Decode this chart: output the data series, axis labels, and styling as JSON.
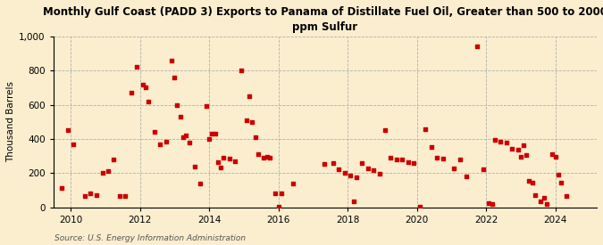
{
  "title": "Monthly Gulf Coast (PADD 3) Exports to Panama of Distillate Fuel Oil, Greater than 500 to 2000\nppm Sulfur",
  "ylabel": "Thousand Barrels",
  "source": "Source: U.S. Energy Information Administration",
  "background_color": "#faeecf",
  "marker_color": "#cc0000",
  "ylim": [
    0,
    1000
  ],
  "yticks": [
    0,
    200,
    400,
    600,
    800,
    1000
  ],
  "xlim_start": 2009.5,
  "xlim_end": 2025.2,
  "xticks": [
    2010,
    2012,
    2014,
    2016,
    2018,
    2020,
    2022,
    2024
  ],
  "data_points": [
    [
      2009.75,
      110
    ],
    [
      2009.92,
      450
    ],
    [
      2010.08,
      370
    ],
    [
      2010.42,
      65
    ],
    [
      2010.58,
      80
    ],
    [
      2010.75,
      70
    ],
    [
      2010.92,
      200
    ],
    [
      2011.08,
      210
    ],
    [
      2011.25,
      280
    ],
    [
      2011.42,
      65
    ],
    [
      2011.58,
      65
    ],
    [
      2011.75,
      670
    ],
    [
      2011.92,
      820
    ],
    [
      2012.08,
      720
    ],
    [
      2012.17,
      700
    ],
    [
      2012.25,
      620
    ],
    [
      2012.42,
      440
    ],
    [
      2012.58,
      370
    ],
    [
      2012.75,
      385
    ],
    [
      2012.92,
      860
    ],
    [
      2013.0,
      760
    ],
    [
      2013.08,
      600
    ],
    [
      2013.17,
      530
    ],
    [
      2013.25,
      410
    ],
    [
      2013.33,
      420
    ],
    [
      2013.42,
      380
    ],
    [
      2013.58,
      240
    ],
    [
      2013.75,
      140
    ],
    [
      2013.92,
      590
    ],
    [
      2014.0,
      400
    ],
    [
      2014.08,
      430
    ],
    [
      2014.17,
      430
    ],
    [
      2014.25,
      265
    ],
    [
      2014.33,
      230
    ],
    [
      2014.42,
      290
    ],
    [
      2014.58,
      285
    ],
    [
      2014.75,
      270
    ],
    [
      2014.92,
      800
    ],
    [
      2015.08,
      510
    ],
    [
      2015.17,
      650
    ],
    [
      2015.25,
      500
    ],
    [
      2015.33,
      410
    ],
    [
      2015.42,
      310
    ],
    [
      2015.58,
      290
    ],
    [
      2015.67,
      295
    ],
    [
      2015.75,
      290
    ],
    [
      2015.92,
      80
    ],
    [
      2016.0,
      5
    ],
    [
      2016.08,
      80
    ],
    [
      2016.42,
      140
    ],
    [
      2017.33,
      255
    ],
    [
      2017.58,
      260
    ],
    [
      2017.75,
      220
    ],
    [
      2017.92,
      200
    ],
    [
      2018.08,
      185
    ],
    [
      2018.17,
      35
    ],
    [
      2018.25,
      175
    ],
    [
      2018.42,
      260
    ],
    [
      2018.58,
      225
    ],
    [
      2018.75,
      215
    ],
    [
      2018.92,
      195
    ],
    [
      2019.08,
      450
    ],
    [
      2019.25,
      290
    ],
    [
      2019.42,
      280
    ],
    [
      2019.58,
      280
    ],
    [
      2019.75,
      265
    ],
    [
      2019.92,
      260
    ],
    [
      2020.08,
      5
    ],
    [
      2020.25,
      455
    ],
    [
      2020.42,
      350
    ],
    [
      2020.58,
      290
    ],
    [
      2020.75,
      285
    ],
    [
      2021.08,
      225
    ],
    [
      2021.25,
      280
    ],
    [
      2021.42,
      180
    ],
    [
      2021.75,
      940
    ],
    [
      2021.92,
      220
    ],
    [
      2022.08,
      25
    ],
    [
      2022.17,
      20
    ],
    [
      2022.25,
      395
    ],
    [
      2022.42,
      385
    ],
    [
      2022.58,
      380
    ],
    [
      2022.75,
      340
    ],
    [
      2022.92,
      335
    ],
    [
      2023.0,
      295
    ],
    [
      2023.08,
      365
    ],
    [
      2023.17,
      305
    ],
    [
      2023.25,
      155
    ],
    [
      2023.33,
      145
    ],
    [
      2023.42,
      70
    ],
    [
      2023.58,
      35
    ],
    [
      2023.67,
      55
    ],
    [
      2023.75,
      20
    ],
    [
      2023.92,
      310
    ],
    [
      2024.0,
      295
    ],
    [
      2024.08,
      190
    ],
    [
      2024.17,
      145
    ],
    [
      2024.33,
      65
    ]
  ]
}
